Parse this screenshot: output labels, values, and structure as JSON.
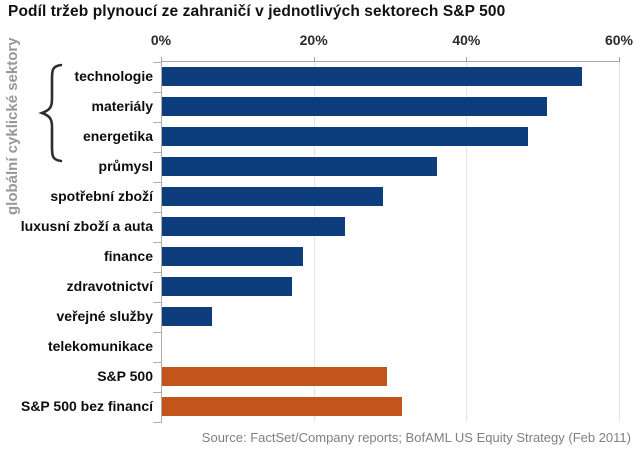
{
  "title": "Podíl tržeb plynoucí ze zahraničí v jednotlivých sektorech S&P 500",
  "group_label": "globální cyklické sektory",
  "source": "Source: FactSet/Company reports; BofAML US Equity Strategy (Feb 2011)",
  "colors": {
    "sector_bar": "#0d3d7d",
    "index_bar": "#c2551b",
    "grid": "#e4e4e4",
    "axis": "#a6a6a6",
    "group_label_text": "#979797",
    "brace": "#2e2e2e"
  },
  "chart_data": {
    "type": "bar",
    "orientation": "horizontal",
    "title": "Podíl tržeb plynoucí ze zahraničí v jednotlivých sektorech S&P 500",
    "categories": [
      "technologie",
      "materiály",
      "energetika",
      "průmysl",
      "spotřební zboží",
      "luxusní zboží a auta",
      "finance",
      "zdravotnictví",
      "veřejné služby",
      "telekomunikace",
      "S&P 500",
      "S&P 500 bez financí"
    ],
    "values": [
      55,
      50.5,
      48,
      36,
      29,
      24,
      18.5,
      17,
      6.5,
      0,
      29.5,
      31.5
    ],
    "bar_colors": [
      "#0d3d7d",
      "#0d3d7d",
      "#0d3d7d",
      "#0d3d7d",
      "#0d3d7d",
      "#0d3d7d",
      "#0d3d7d",
      "#0d3d7d",
      "#0d3d7d",
      "#0d3d7d",
      "#c2551b",
      "#c2551b"
    ],
    "xlim": [
      0,
      60
    ],
    "x_ticks": [
      {
        "value": 0,
        "label": "0%"
      },
      {
        "value": 20,
        "label": "20%"
      },
      {
        "value": 40,
        "label": "40%"
      },
      {
        "value": 60,
        "label": "60%"
      }
    ],
    "grid": true,
    "legend": false,
    "annotation": {
      "brace_group_label": "globální cyklické sektory",
      "brace_spans_categories": [
        "technologie",
        "materiály",
        "energetika"
      ]
    }
  }
}
